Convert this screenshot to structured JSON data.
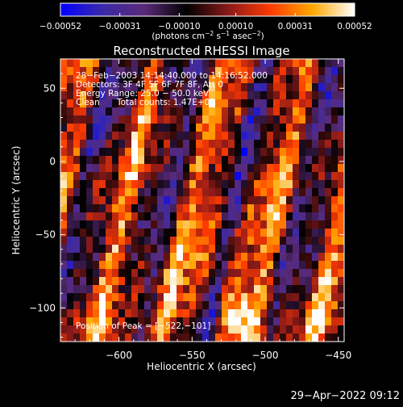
{
  "chart_data": {
    "type": "heatmap",
    "title": "Reconstructed RHESSI Image",
    "xlabel": "Heliocentric X (arcsec)",
    "ylabel": "Heliocentric Y (arcsec)",
    "xlim": [
      -640,
      -446
    ],
    "ylim": [
      -123,
      70
    ],
    "x_ticks": [
      {
        "value": -600,
        "label": "−600"
      },
      {
        "value": -550,
        "label": "−550"
      },
      {
        "value": -500,
        "label": "−500"
      },
      {
        "value": -450,
        "label": "−450"
      }
    ],
    "y_ticks": [
      {
        "value": 50,
        "label": "50"
      },
      {
        "value": 0,
        "label": "0"
      },
      {
        "value": -50,
        "label": "−50"
      },
      {
        "value": -100,
        "label": "−100"
      }
    ],
    "colorbar": {
      "range": [
        -0.00052,
        0.00052
      ],
      "tick_labels": [
        "−0.00052",
        "−0.00031",
        "−0.00010",
        "0.00010",
        "0.00031",
        "0.00052"
      ],
      "tick_values": [
        -0.00052,
        -0.00031,
        -0.0001,
        0.0001,
        0.00031,
        0.00052
      ],
      "unit_prefix": "(photons cm",
      "unit_exp1": "−2",
      "unit_mid1": " s",
      "unit_exp2": "−1",
      "unit_mid2": " asec",
      "unit_exp3": "−2",
      "unit_suffix": ")",
      "colors": [
        "#0000ff",
        "#3a2aa8",
        "#5a2a78",
        "#000000",
        "#8a1a1a",
        "#ff3a00",
        "#ffa800",
        "#ffffff"
      ]
    },
    "annotations": {
      "time": "28−Feb−2003 14:14:40.000 to 14:16:52.000",
      "detectors": "Detectors: 3F 4F 5F 6F 7F 8F, Att 0",
      "energy": "Energy Range: 25.0 − 50.0 keV",
      "clean_label": "Clean",
      "counts": "Total counts: 1.47E+03",
      "peak": "Position of Peak = [−522,−101]"
    },
    "peak": {
      "x": -522,
      "y": -101
    }
  },
  "timestamp": "29−Apr−2022 09:12"
}
